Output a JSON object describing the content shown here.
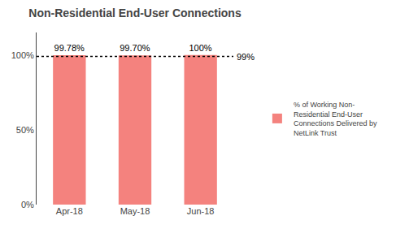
{
  "chart_data": {
    "type": "bar",
    "title": "Non-Residential End-User Connections",
    "categories": [
      "Apr-18",
      "May-18",
      "Jun-18"
    ],
    "series": [
      {
        "name": "% of Working Non-\nResidential End-User\nConnections Delivered by\nNetLink Trust",
        "color": "#F4827E",
        "values": [
          99.78,
          99.7,
          100.0
        ],
        "value_labels": [
          "99.78%",
          "99.70%",
          "100%"
        ]
      }
    ],
    "data_labels": true,
    "ylim": [
      0,
      115
    ],
    "yticks": [
      {
        "value": 0,
        "label": "0%"
      },
      {
        "value": 50,
        "label": "50%"
      },
      {
        "value": 100,
        "label": "100%"
      }
    ],
    "grid": false,
    "legend": "right",
    "annotations": [
      {
        "text": "99%",
        "y": 99,
        "color": "#000000",
        "line_style": "dotted"
      }
    ]
  }
}
